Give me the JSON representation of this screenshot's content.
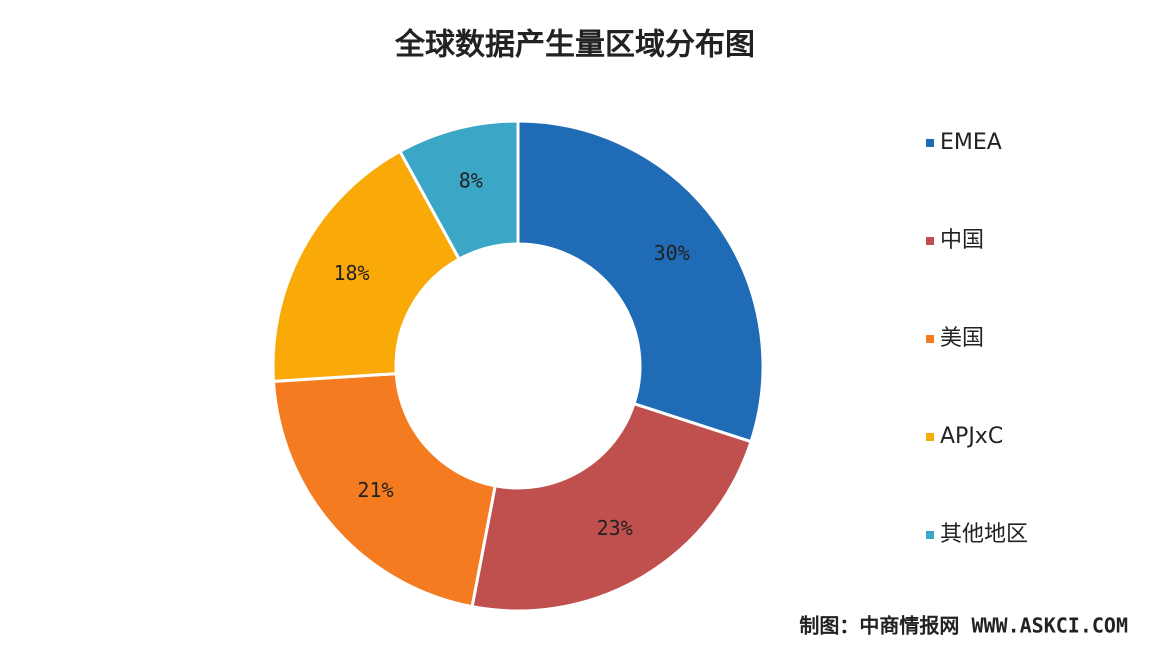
{
  "chart_data": {
    "type": "donut",
    "title": "全球数据产生量区域分布图",
    "categories": [
      "EMEA",
      "中国",
      "美国",
      "APJxC",
      "其他地区"
    ],
    "values": [
      30,
      23,
      21,
      18,
      8
    ],
    "value_labels": [
      "30%",
      "23%",
      "21%",
      "18%",
      "8%"
    ],
    "colors": [
      "#1f6bb5",
      "#c0504d",
      "#f47b20",
      "#f9a908",
      "#3ba6c6"
    ],
    "legend": "right",
    "source": "制图：中商情报网 WWW.ASKCI.COM"
  }
}
